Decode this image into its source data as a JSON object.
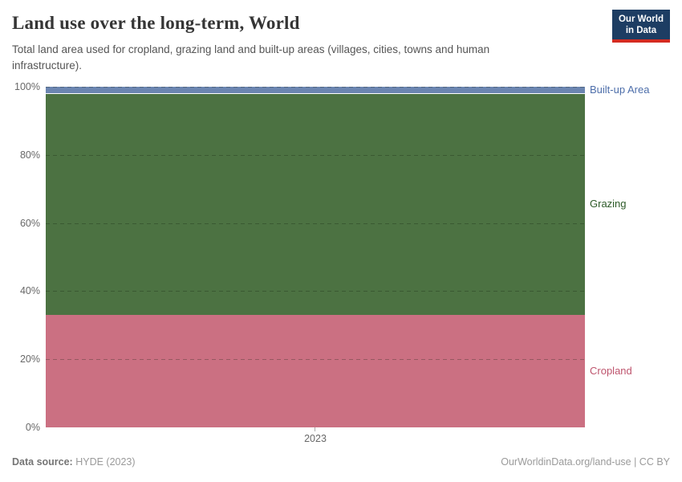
{
  "header": {
    "title": "Land use over the long-term, World",
    "subtitle": "Total land area used for cropland, grazing land and built-up areas (villages, cities, towns and human infrastructure).",
    "logo": {
      "line1": "Our World",
      "line2": "in Data",
      "bg_color": "#1d3d63",
      "bar_color": "#d42b21"
    }
  },
  "chart_data": {
    "type": "area",
    "stacked": true,
    "relative": true,
    "title": "Land use over the long-term, World",
    "x": [
      2023
    ],
    "x_tick_label": "2023",
    "xlabel": "",
    "ylabel": "",
    "ylim": [
      0,
      100
    ],
    "y_ticks": [
      "0%",
      "20%",
      "40%",
      "60%",
      "80%",
      "100%"
    ],
    "grid": "dashed-horizontal",
    "legend_position": "right-inline-labels",
    "series": [
      {
        "name": "Cropland",
        "values": [
          33
        ],
        "unit": "%",
        "color": "#cb7082",
        "label_color": "#be556e"
      },
      {
        "name": "Grazing",
        "values": [
          65
        ],
        "unit": "%",
        "color": "#4c7242",
        "label_color": "#2d5a28"
      },
      {
        "name": "Built-up Area",
        "values": [
          2
        ],
        "unit": "%",
        "color": "#6b85b0",
        "label_color": "#4d6eaa"
      }
    ]
  },
  "footer": {
    "source_label": "Data source:",
    "source_value": " HYDE (2023)",
    "credit": "OurWorldinData.org/land-use | CC BY"
  }
}
